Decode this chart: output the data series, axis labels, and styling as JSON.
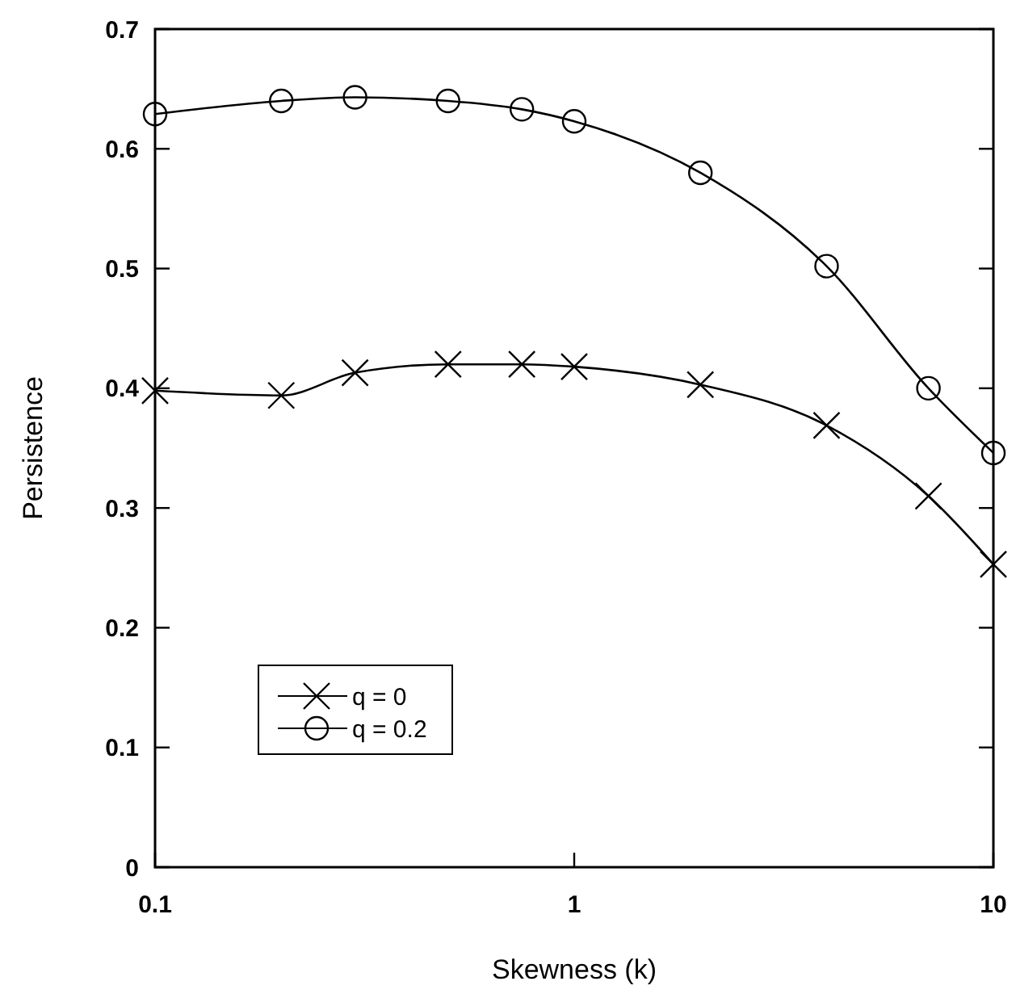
{
  "chart_data": {
    "type": "line",
    "xlabel": "Skewness (k)",
    "ylabel": "Persistence",
    "log": "x",
    "xlim": [
      0.1,
      10
    ],
    "xticks": [
      0.1,
      1,
      10
    ],
    "ylim": [
      0,
      0.7
    ],
    "yticks": [
      0,
      0.1,
      0.2,
      0.3,
      0.4,
      0.5,
      0.6,
      0.7
    ],
    "x": [
      0.1,
      0.2,
      0.3,
      0.5,
      0.75,
      1,
      2,
      4,
      7,
      10
    ],
    "series": [
      {
        "name": "q = 0",
        "color": "#000000",
        "marker": "cross",
        "values": [
          0.398,
          0.394,
          0.413,
          0.42,
          0.42,
          0.418,
          0.403,
          0.369,
          0.31,
          0.253
        ]
      },
      {
        "name": "q = 0.2",
        "color": "#000000",
        "marker": "circle",
        "values": [
          0.629,
          0.64,
          0.643,
          0.64,
          0.633,
          0.623,
          0.58,
          0.502,
          0.4,
          0.346
        ]
      }
    ],
    "legend": "bottom left",
    "grid": false,
    "line_style": "solid"
  }
}
